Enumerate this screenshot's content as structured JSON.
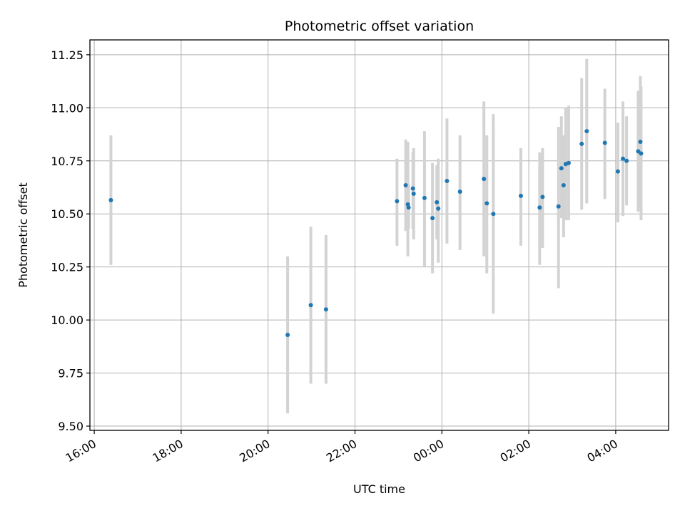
{
  "chart_data": {
    "type": "scatter",
    "title": "Photometric offset variation",
    "xlabel": "UTC time",
    "ylabel": "Photometric offset",
    "x_axis_kind": "time",
    "x_ticks": [
      "16:00",
      "18:00",
      "20:00",
      "22:00",
      "00:00",
      "02:00",
      "04:00"
    ],
    "y_ticks": [
      9.5,
      9.75,
      10.0,
      10.25,
      10.5,
      10.75,
      11.0,
      11.25
    ],
    "y_tick_labels": [
      "9.50",
      "9.75",
      "10.00",
      "10.25",
      "10.50",
      "10.75",
      "11.00",
      "11.25"
    ],
    "xlim": [
      "15:54",
      "05:13"
    ],
    "ylim": [
      9.48,
      11.32
    ],
    "grid": true,
    "marker_color": "#1f77b4",
    "errorbar_color": "#d3d3d3",
    "points": [
      {
        "t": "16:23",
        "y": 10.565,
        "low": 10.26,
        "high": 10.87
      },
      {
        "t": "20:27",
        "y": 9.93,
        "low": 9.56,
        "high": 10.3
      },
      {
        "t": "20:59",
        "y": 10.07,
        "low": 9.7,
        "high": 10.44
      },
      {
        "t": "21:20",
        "y": 10.05,
        "low": 9.7,
        "high": 10.4
      },
      {
        "t": "22:58",
        "y": 10.56,
        "low": 10.35,
        "high": 10.76
      },
      {
        "t": "23:10",
        "y": 10.635,
        "low": 10.42,
        "high": 10.85
      },
      {
        "t": "23:13",
        "y": 10.545,
        "low": 10.3,
        "high": 10.84
      },
      {
        "t": "23:14",
        "y": 10.53,
        "low": 10.43,
        "high": 10.64
      },
      {
        "t": "23:20",
        "y": 10.62,
        "low": 10.43,
        "high": 10.79
      },
      {
        "t": "23:21",
        "y": 10.595,
        "low": 10.38,
        "high": 10.81
      },
      {
        "t": "23:36",
        "y": 10.575,
        "low": 10.25,
        "high": 10.89
      },
      {
        "t": "23:47",
        "y": 10.48,
        "low": 10.22,
        "high": 10.74
      },
      {
        "t": "23:53",
        "y": 10.555,
        "low": 10.38,
        "high": 10.73
      },
      {
        "t": "23:55",
        "y": 10.525,
        "low": 10.27,
        "high": 10.76
      },
      {
        "t": "00:07",
        "y": 10.655,
        "low": 10.36,
        "high": 10.95
      },
      {
        "t": "00:25",
        "y": 10.605,
        "low": 10.33,
        "high": 10.87
      },
      {
        "t": "00:58",
        "y": 10.665,
        "low": 10.3,
        "high": 11.03
      },
      {
        "t": "01:02",
        "y": 10.55,
        "low": 10.22,
        "high": 10.87
      },
      {
        "t": "01:11",
        "y": 10.5,
        "low": 10.03,
        "high": 10.97
      },
      {
        "t": "01:49",
        "y": 10.585,
        "low": 10.35,
        "high": 10.81
      },
      {
        "t": "02:15",
        "y": 10.53,
        "low": 10.26,
        "high": 10.79
      },
      {
        "t": "02:19",
        "y": 10.58,
        "low": 10.34,
        "high": 10.81
      },
      {
        "t": "02:41",
        "y": 10.535,
        "low": 10.15,
        "high": 10.91
      },
      {
        "t": "02:45",
        "y": 10.715,
        "low": 10.48,
        "high": 10.96
      },
      {
        "t": "02:48",
        "y": 10.635,
        "low": 10.39,
        "high": 10.87
      },
      {
        "t": "02:51",
        "y": 10.735,
        "low": 10.47,
        "high": 11.0
      },
      {
        "t": "02:55",
        "y": 10.74,
        "low": 10.47,
        "high": 11.01
      },
      {
        "t": "03:13",
        "y": 10.83,
        "low": 10.52,
        "high": 11.14
      },
      {
        "t": "03:20",
        "y": 10.89,
        "low": 10.55,
        "high": 11.23
      },
      {
        "t": "03:45",
        "y": 10.835,
        "low": 10.57,
        "high": 11.09
      },
      {
        "t": "04:03",
        "y": 10.7,
        "low": 10.46,
        "high": 10.93
      },
      {
        "t": "04:10",
        "y": 10.76,
        "low": 10.49,
        "high": 11.03
      },
      {
        "t": "04:15",
        "y": 10.75,
        "low": 10.54,
        "high": 10.96
      },
      {
        "t": "04:31",
        "y": 10.795,
        "low": 10.51,
        "high": 11.08
      },
      {
        "t": "04:34",
        "y": 10.84,
        "low": 10.53,
        "high": 11.15
      },
      {
        "t": "04:35",
        "y": 10.785,
        "low": 10.47,
        "high": 11.1
      }
    ]
  }
}
